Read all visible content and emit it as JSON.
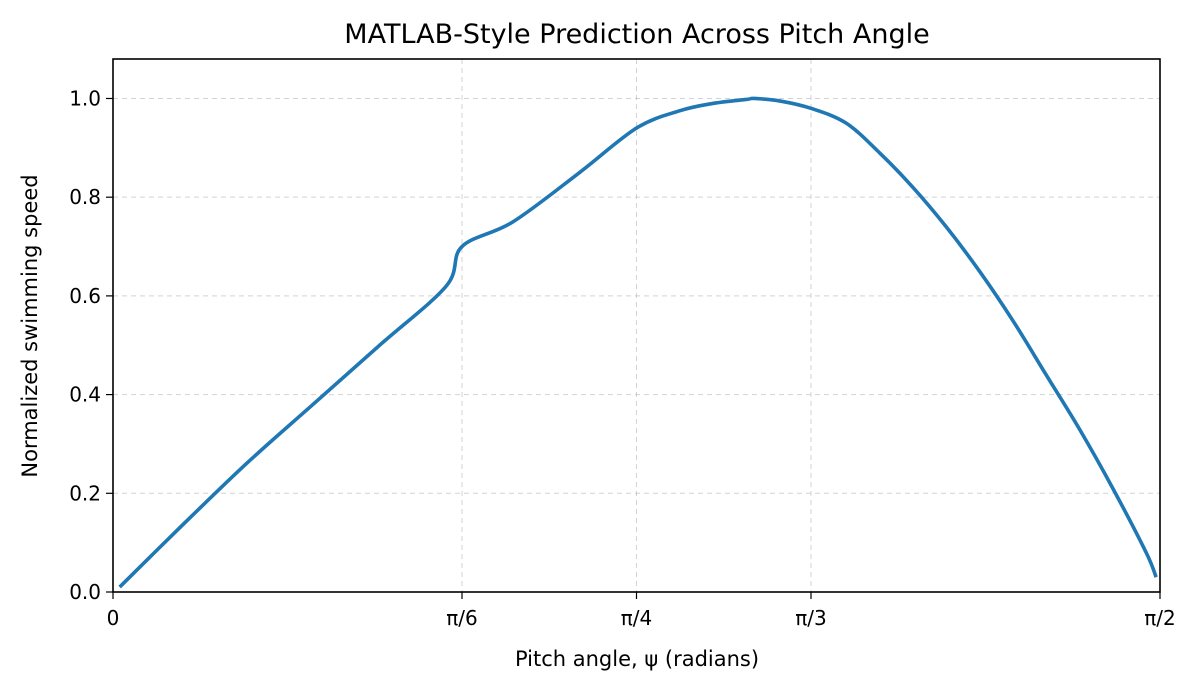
{
  "chart_data": {
    "type": "line",
    "title": "MATLAB-Style Prediction Across Pitch Angle",
    "xlabel": "Pitch angle, ψ (radians)",
    "ylabel": "Normalized swimming speed",
    "xlim": [
      0,
      1.5708
    ],
    "ylim": [
      0,
      1.08
    ],
    "grid": true,
    "x_ticks": [
      {
        "value": 0,
        "label": "0"
      },
      {
        "value": 0.5236,
        "label": "π/6"
      },
      {
        "value": 0.7854,
        "label": "π/4"
      },
      {
        "value": 1.0472,
        "label": "π/3"
      },
      {
        "value": 1.5708,
        "label": "π/2"
      }
    ],
    "y_ticks": [
      {
        "value": 0.0,
        "label": "0.0"
      },
      {
        "value": 0.2,
        "label": "0.2"
      },
      {
        "value": 0.4,
        "label": "0.4"
      },
      {
        "value": 0.6,
        "label": "0.6"
      },
      {
        "value": 0.8,
        "label": "0.8"
      },
      {
        "value": 1.0,
        "label": "1.0"
      }
    ],
    "series": [
      {
        "color": "#1f77b4",
        "x": [
          0.01,
          0.1,
          0.2,
          0.3,
          0.4,
          0.5,
          0.5236,
          0.6,
          0.7,
          0.7854,
          0.85,
          0.9,
          0.95,
          0.962,
          1.0,
          1.0472,
          1.1,
          1.15,
          1.2,
          1.25,
          1.3,
          1.35,
          1.4,
          1.45,
          1.5,
          1.55,
          1.565
        ],
        "y": [
          0.01,
          0.13,
          0.26,
          0.38,
          0.5,
          0.62,
          0.7,
          0.75,
          0.85,
          0.94,
          0.975,
          0.99,
          0.998,
          1.0,
          0.995,
          0.98,
          0.95,
          0.89,
          0.82,
          0.74,
          0.65,
          0.55,
          0.44,
          0.33,
          0.21,
          0.08,
          0.03
        ]
      }
    ]
  }
}
